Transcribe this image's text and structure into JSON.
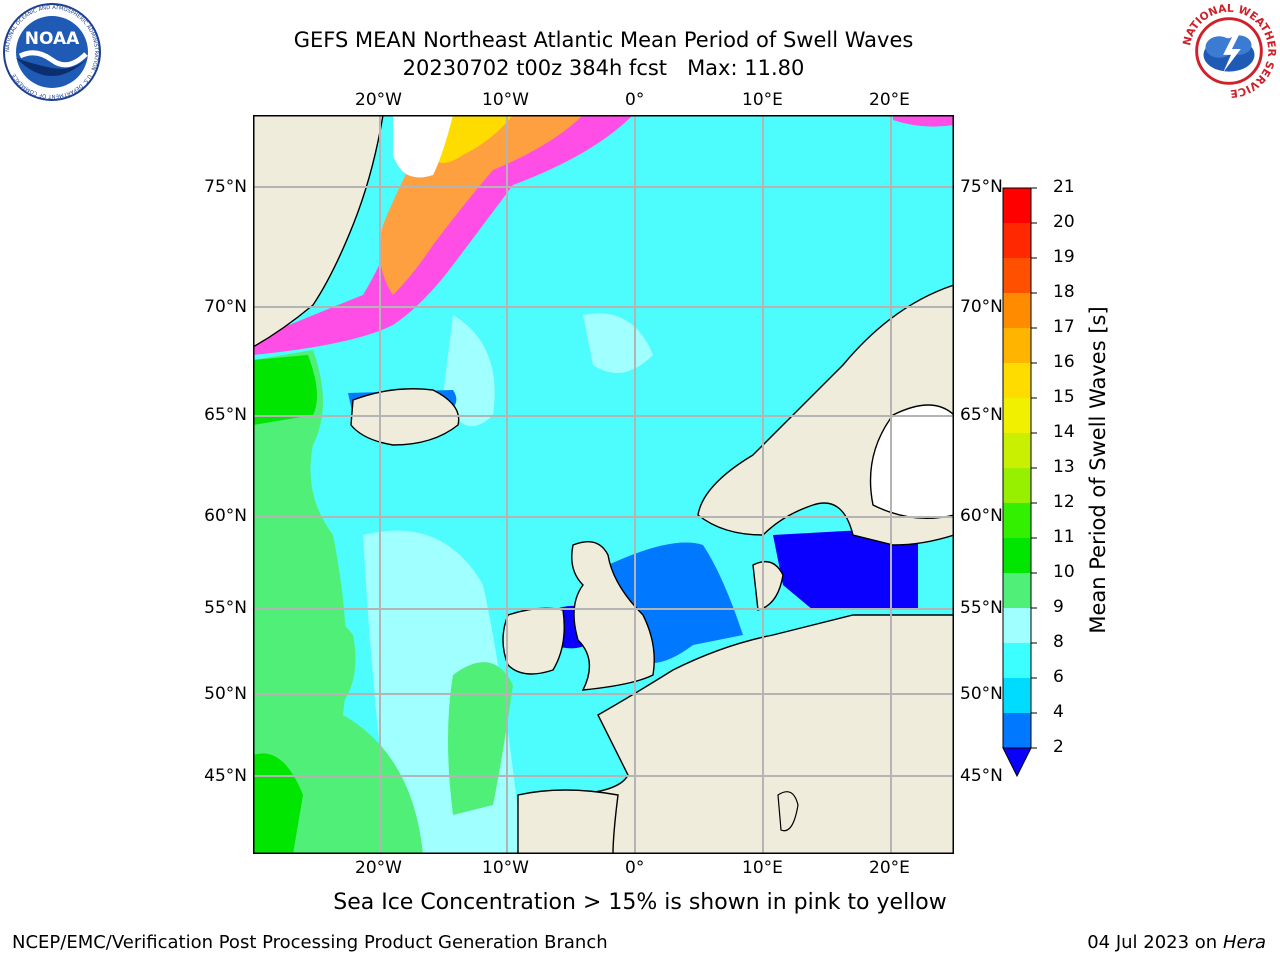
{
  "title": {
    "line1": "GEFS MEAN Northeast Atlantic Mean Period of Swell Waves",
    "line2": "20230702 t00z 384h fcst   Max: 11.80"
  },
  "logos": {
    "noaa_text": "NOAA",
    "noaa_ring": "NATIONAL OCEANIC AND ATMOSPHERIC ADMINISTRATION · U.S. DEPARTMENT OF COMMERCE",
    "nws_ring": "NATIONAL WEATHER SERVICE"
  },
  "map": {
    "lon_labels": [
      "20°W",
      "10°W",
      "0°",
      "10°E",
      "20°E"
    ],
    "lat_labels": [
      "75°N",
      "70°N",
      "65°N",
      "60°N",
      "55°N",
      "50°N",
      "45°N"
    ],
    "colors": {
      "land": "#efecdc",
      "coast": "#000000",
      "grid": "#b4b4b4",
      "ice_white": "#ffffff"
    }
  },
  "colorbar": {
    "title": "Mean Period of Swell Waves [s]",
    "ticks": [
      "21",
      "20",
      "19",
      "18",
      "17",
      "16",
      "15",
      "14",
      "13",
      "12",
      "11",
      "10",
      "9",
      "8",
      "6",
      "4",
      "2"
    ],
    "levels": [
      2,
      4,
      6,
      8,
      9,
      10,
      11,
      12,
      13,
      14,
      15,
      16,
      17,
      18,
      19,
      20,
      21
    ],
    "colors": [
      "#0a00ff",
      "#0078ff",
      "#00dcff",
      "#3cffff",
      "#a0ffff",
      "#50f078",
      "#00e600",
      "#32f000",
      "#96f000",
      "#c8f000",
      "#f0f000",
      "#ffdc00",
      "#ffb400",
      "#ff8c00",
      "#ff5000",
      "#ff2800",
      "#ff0000"
    ],
    "extend": "min"
  },
  "note": "Sea Ice Concentration > 15% is shown in pink to yellow",
  "footer": {
    "left": "NCEP/EMC/Verification Post Processing Product Generation Branch",
    "right_prefix": "04 Jul 2023 on ",
    "right_host": "Hera"
  }
}
